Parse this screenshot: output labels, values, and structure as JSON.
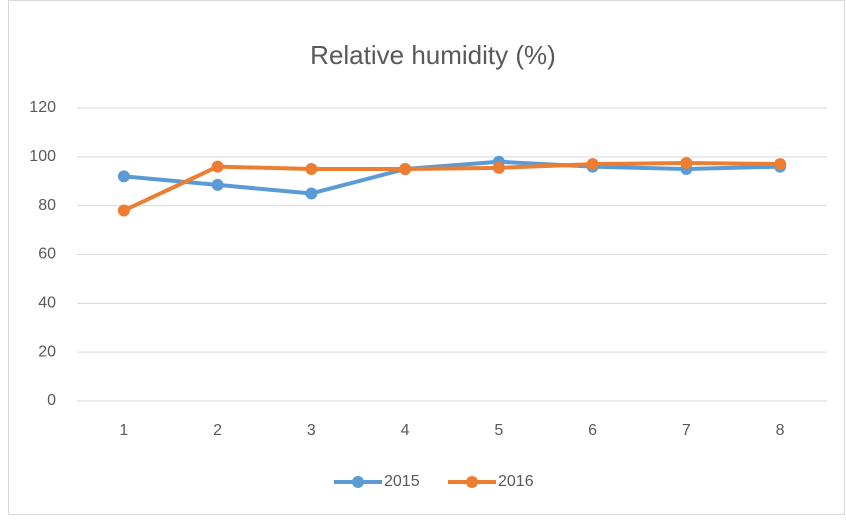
{
  "chart_data": {
    "type": "line",
    "title": "Relative humidity (%)",
    "categories": [
      "1",
      "2",
      "3",
      "4",
      "5",
      "6",
      "7",
      "8"
    ],
    "series": [
      {
        "name": "2015",
        "color": "#5b9bd5",
        "values": [
          92,
          88.5,
          85,
          95,
          98,
          96,
          95,
          96
        ]
      },
      {
        "name": "2016",
        "color": "#ed7d31",
        "values": [
          78,
          96,
          95,
          95,
          95.5,
          97,
          97.5,
          97
        ]
      }
    ],
    "ylim": [
      0,
      120
    ],
    "yticks": [
      0,
      20,
      40,
      60,
      80,
      100,
      120
    ],
    "grid": true,
    "legend": "bottom"
  }
}
